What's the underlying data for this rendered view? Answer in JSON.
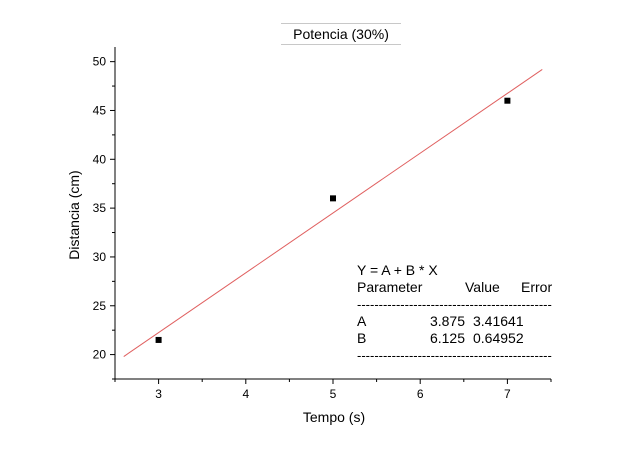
{
  "chart_data": {
    "type": "scatter",
    "title": "Potencia (30%)",
    "xlabel": "Tempo (s)",
    "ylabel": "Distancia (cm)",
    "xlim": [
      2.5,
      7.5
    ],
    "ylim": [
      17.5,
      51.5
    ],
    "xticks": [
      "3",
      "4",
      "5",
      "6",
      "7"
    ],
    "yticks": [
      "20",
      "25",
      "30",
      "35",
      "40",
      "45",
      "50"
    ],
    "grid": false,
    "series": [
      {
        "points": [
          {
            "x": 3,
            "y": 21.5
          },
          {
            "x": 5,
            "y": 36
          },
          {
            "x": 7,
            "y": 46
          }
        ],
        "marker": "square",
        "color": "#000000"
      }
    ],
    "fit_line": {
      "intercept": 3.875,
      "slope": 6.125,
      "x_range": [
        2.6,
        7.4
      ],
      "color": "#e06060"
    },
    "fit_table": {
      "equation": "Y = A + B * X",
      "headers": [
        "Parameter",
        "Value",
        "Error"
      ],
      "separator": "-----------------------------------------------",
      "rows": [
        {
          "param": "A",
          "value": "3.875",
          "error": "3.41641"
        },
        {
          "param": "B",
          "value": "6.125",
          "error": "0.64952"
        }
      ]
    }
  }
}
